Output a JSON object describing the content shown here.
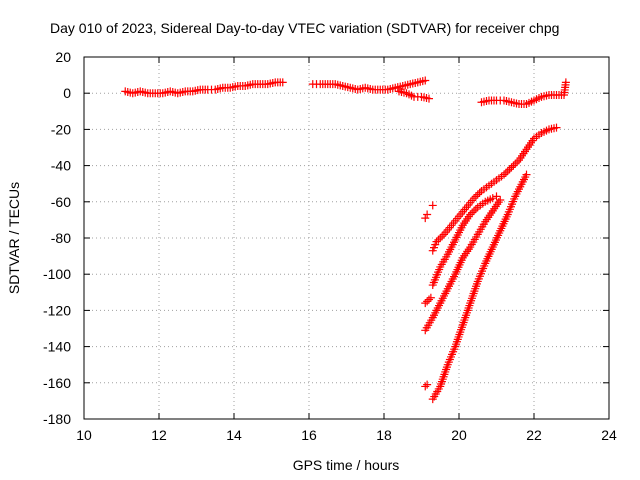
{
  "chart_data": {
    "type": "scatter",
    "title": "Day 010 of 2023, Sidereal Day-to-day VTEC variation (SDTVAR) for receiver chpg",
    "xlabel": "GPS time / hours",
    "ylabel": "SDTVAR / TECUs",
    "xlim": [
      10,
      24
    ],
    "ylim": [
      -180,
      20
    ],
    "xticks": [
      "10",
      "12",
      "14",
      "16",
      "18",
      "20",
      "22",
      "24"
    ],
    "yticks": [
      "20",
      "0",
      "-20",
      "-40",
      "-60",
      "-80",
      "-100",
      "-120",
      "-140",
      "-160",
      "-180"
    ],
    "grid": true,
    "marker": "plus",
    "color": "#ff0000",
    "series": [
      {
        "x": [
          11.1,
          11.3,
          11.5,
          11.7,
          11.9,
          12.1,
          12.3,
          12.5,
          12.7,
          12.9,
          13.1,
          13.3,
          13.5,
          13.7,
          13.9,
          14.1,
          14.3,
          14.5,
          14.7,
          14.9,
          15.1,
          15.3
        ],
        "y": [
          1,
          0,
          1,
          0,
          0,
          0,
          1,
          0,
          1,
          1,
          2,
          2,
          2,
          3,
          3,
          4,
          4,
          5,
          5,
          5,
          6,
          6
        ]
      },
      {
        "x": [
          16.1,
          16.3,
          16.5,
          16.7,
          17.1,
          17.3,
          17.5,
          17.7,
          17.9,
          18.1,
          18.3,
          18.5,
          18.7,
          18.9,
          19.1
        ],
        "y": [
          5,
          5,
          5,
          5,
          3,
          2,
          3,
          2,
          2,
          2,
          3,
          4,
          5,
          6,
          7
        ]
      },
      {
        "x": [
          18.4,
          18.6,
          18.8,
          19.0,
          19.2
        ],
        "y": [
          1,
          0,
          -2,
          -2,
          -3
        ]
      },
      {
        "x": [
          20.6,
          20.8,
          21.0,
          21.2,
          21.4,
          21.6,
          21.8,
          22.0,
          22.2,
          22.4,
          22.6,
          22.8,
          22.85
        ],
        "y": [
          -5,
          -4,
          -4,
          -4,
          -5,
          -6,
          -6,
          -4,
          -2,
          -1,
          -1,
          -1,
          6
        ]
      },
      {
        "x": [
          19.3,
          19.4,
          19.6,
          19.8,
          20.0,
          20.2,
          20.4,
          20.6,
          20.8,
          21.0,
          21.2,
          21.4,
          21.6,
          21.8,
          22.0,
          22.2,
          22.4,
          22.6
        ],
        "y": [
          -87,
          -82,
          -78,
          -73,
          -68,
          -63,
          -58,
          -54,
          -51,
          -48,
          -45,
          -41,
          -37,
          -31,
          -25,
          -22,
          -20,
          -19
        ]
      },
      {
        "x": [
          19.3,
          19.5,
          19.7,
          19.9,
          20.1,
          20.3,
          20.5,
          20.7,
          20.9,
          21.0
        ],
        "y": [
          -106,
          -96,
          -89,
          -81,
          -73,
          -67,
          -63,
          -60,
          -58,
          -57
        ]
      },
      {
        "x": [
          19.1,
          19.3,
          19.5,
          19.7,
          19.9,
          20.1,
          20.3,
          20.5,
          20.7,
          20.9,
          21.1
        ],
        "y": [
          -131,
          -124,
          -116,
          -108,
          -100,
          -91,
          -85,
          -78,
          -71,
          -65,
          -59
        ]
      },
      {
        "x": [
          19.3,
          19.5,
          19.7,
          19.9,
          20.1,
          20.3,
          20.5,
          20.7,
          20.9,
          21.1,
          21.3,
          21.5,
          21.7,
          21.8
        ],
        "y": [
          -169,
          -162,
          -150,
          -140,
          -128,
          -116,
          -104,
          -94,
          -85,
          -76,
          -67,
          -57,
          -49,
          -45
        ]
      },
      {
        "x": [
          19.1,
          19.15,
          19.1,
          19.25,
          19.3,
          19.1,
          19.15
        ],
        "y": [
          -69,
          -67,
          -116,
          -113,
          -62,
          -162,
          -161
        ]
      }
    ]
  }
}
